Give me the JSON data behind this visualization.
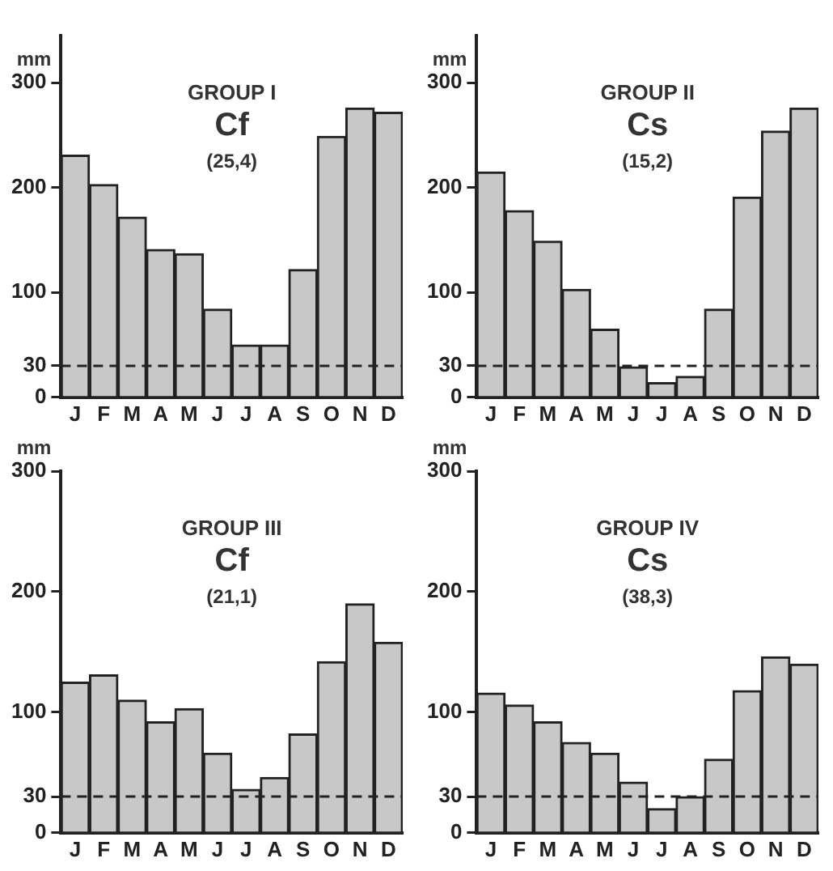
{
  "chart_data": [
    {
      "type": "bar",
      "title": "GROUP I",
      "subtitle": "Cf",
      "annotations": [
        "(25,4)"
      ],
      "ylabel": "mm",
      "categories": [
        "J",
        "F",
        "M",
        "A",
        "M",
        "J",
        "J",
        "A",
        "S",
        "O",
        "N",
        "D"
      ],
      "values": [
        231,
        203,
        172,
        141,
        137,
        84,
        50,
        50,
        122,
        249,
        276,
        272
      ],
      "color": "#c8c8c8",
      "ylim": [
        0,
        345
      ],
      "yticks": [
        0,
        30,
        100,
        200,
        300
      ],
      "ref_lines": [
        {
          "axis": "y",
          "value": 30,
          "color": "#222222",
          "line_style": "dashed"
        }
      ],
      "grid": false,
      "legend": false
    },
    {
      "type": "bar",
      "title": "GROUP II",
      "subtitle": "Cs",
      "annotations": [
        "(15,2)"
      ],
      "ylabel": "mm",
      "categories": [
        "J",
        "F",
        "M",
        "A",
        "M",
        "J",
        "J",
        "A",
        "S",
        "O",
        "N",
        "D"
      ],
      "values": [
        215,
        178,
        149,
        103,
        65,
        29,
        14,
        20,
        84,
        191,
        254,
        276
      ],
      "color": "#c8c8c8",
      "ylim": [
        0,
        345
      ],
      "yticks": [
        0,
        30,
        100,
        200,
        300
      ],
      "ref_lines": [
        {
          "axis": "y",
          "value": 30,
          "color": "#222222",
          "line_style": "dashed"
        }
      ],
      "grid": false,
      "legend": false
    },
    {
      "type": "bar",
      "title": "GROUP III",
      "subtitle": "Cf",
      "annotations": [
        "(21,1)"
      ],
      "ylabel": "mm",
      "categories": [
        "J",
        "F",
        "M",
        "A",
        "M",
        "J",
        "J",
        "A",
        "S",
        "O",
        "N",
        "D"
      ],
      "values": [
        125,
        131,
        110,
        92,
        103,
        66,
        36,
        46,
        82,
        142,
        190,
        158
      ],
      "color": "#c8c8c8",
      "ylim": [
        0,
        300
      ],
      "yticks": [
        0,
        30,
        100,
        200,
        300
      ],
      "ref_lines": [
        {
          "axis": "y",
          "value": 30,
          "color": "#222222",
          "line_style": "dashed"
        }
      ],
      "grid": false,
      "legend": false
    },
    {
      "type": "bar",
      "title": "GROUP IV",
      "subtitle": "Cs",
      "annotations": [
        "(38,3)"
      ],
      "ylabel": "mm",
      "categories": [
        "J",
        "F",
        "M",
        "A",
        "M",
        "J",
        "J",
        "A",
        "S",
        "O",
        "N",
        "D"
      ],
      "values": [
        116,
        106,
        92,
        75,
        66,
        42,
        20,
        30,
        61,
        118,
        146,
        140
      ],
      "color": "#c8c8c8",
      "ylim": [
        0,
        300
      ],
      "yticks": [
        0,
        30,
        100,
        200,
        300
      ],
      "ref_lines": [
        {
          "axis": "y",
          "value": 30,
          "color": "#222222",
          "line_style": "dashed"
        }
      ],
      "grid": false,
      "legend": false
    }
  ]
}
